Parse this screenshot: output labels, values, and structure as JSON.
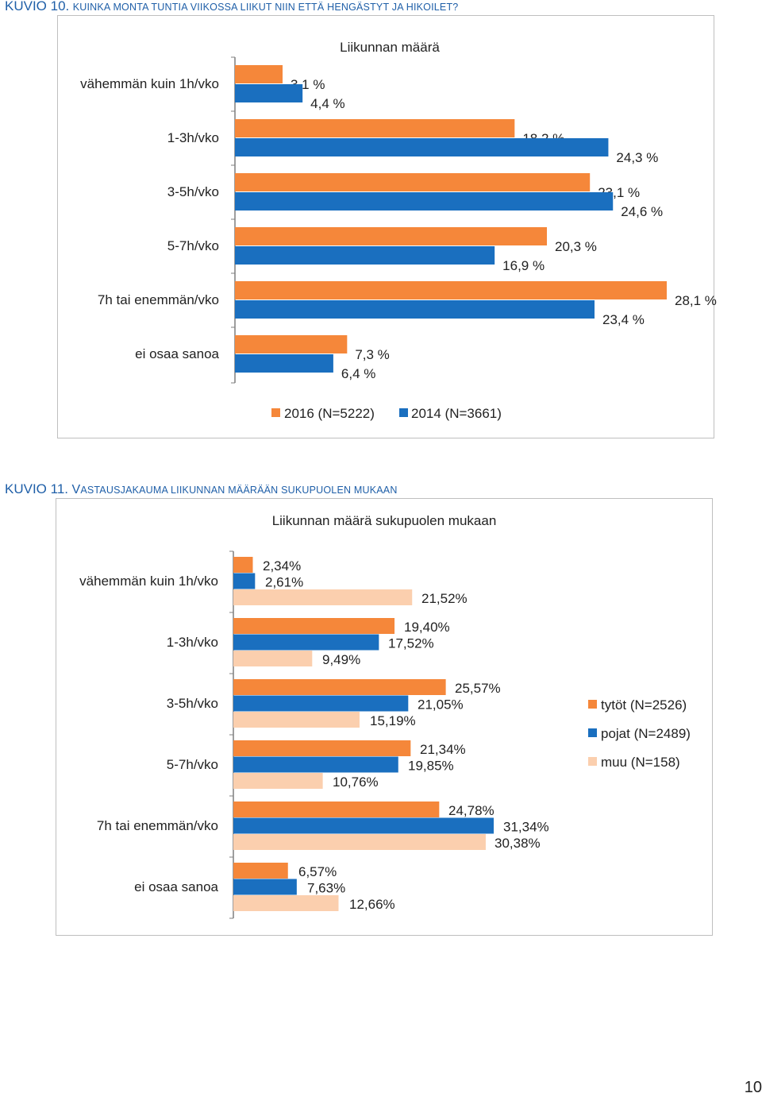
{
  "header_k10": {
    "number": "KUVIO 10.",
    "caption": "KUINKA MONTA TUNTIA VIIKOSSA LIIKUT NIIN ETTÄ HENGÄSTYT JA HIKOILET?"
  },
  "header_k11": {
    "number": "KUVIO 11.",
    "caption_initial": "V",
    "caption_rest": "ASTAUSJAKAUMA LIIKUNNAN MÄÄRÄÄN SUKUPUOLEN MUKAAN"
  },
  "page_number": "10",
  "chart_data": [
    {
      "type": "bar",
      "orientation": "horizontal",
      "title": "Liikunnan määrä",
      "categories": [
        "vähemmän kuin 1h/vko",
        "1-3h/vko",
        "3-5h/vko",
        "5-7h/vko",
        "7h tai enemmän/vko",
        "ei osaa sanoa"
      ],
      "xlim": [
        0,
        29
      ],
      "legend_position": "bottom",
      "series": [
        {
          "name": "2016 (N=5222)",
          "color": "#f5873a",
          "values": [
            3.1,
            18.2,
            23.1,
            20.3,
            28.1,
            7.3
          ],
          "labels": [
            "3,1 %",
            "18,2 %",
            "23,1 %",
            "20,3 %",
            "28,1 %",
            "7,3 %"
          ]
        },
        {
          "name": "2014 (N=3661)",
          "color": "#1a6fbf",
          "values": [
            4.4,
            24.3,
            24.6,
            16.9,
            23.4,
            6.4
          ],
          "labels": [
            "4,4 %",
            "24,3 %",
            "24,6 %",
            "16,9 %",
            "23,4 %",
            "6,4 %"
          ]
        }
      ]
    },
    {
      "type": "bar",
      "orientation": "horizontal",
      "title": "Liikunnan määrä sukupuolen mukaan",
      "categories": [
        "vähemmän kuin 1h/vko",
        "1-3h/vko",
        "3-5h/vko",
        "5-7h/vko",
        "7h tai enemmän/vko",
        "ei osaa sanoa"
      ],
      "xlim": [
        0,
        37
      ],
      "legend_position": "right",
      "series": [
        {
          "name": "tytöt (N=2526)",
          "color": "#f5873a",
          "values": [
            2.34,
            19.4,
            25.57,
            21.34,
            24.78,
            6.57
          ],
          "labels": [
            "2,34%",
            "19,40%",
            "25,57%",
            "21,34%",
            "24,78%",
            "6,57%"
          ]
        },
        {
          "name": "pojat (N=2489)",
          "color": "#1a6fbf",
          "values": [
            2.61,
            17.52,
            21.05,
            19.85,
            31.34,
            7.63
          ],
          "labels": [
            "2,61%",
            "17,52%",
            "21,05%",
            "19,85%",
            "31,34%",
            "7,63%"
          ]
        },
        {
          "name": "muu (N=158)",
          "color": "#fbcfae",
          "values": [
            21.52,
            9.49,
            15.19,
            10.76,
            30.38,
            12.66
          ],
          "labels": [
            "21,52%",
            "9,49%",
            "15,19%",
            "10,76%",
            "30,38%",
            "12,66%"
          ]
        }
      ]
    }
  ]
}
